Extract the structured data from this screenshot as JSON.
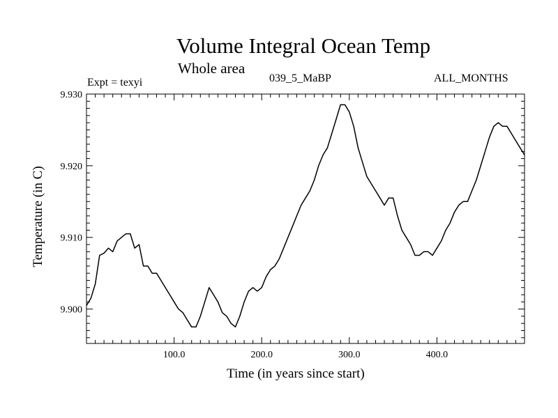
{
  "chart_data": {
    "type": "line",
    "title": "Volume Integral Ocean Temp",
    "subtitle": "Whole area",
    "annotations": {
      "expt": "Expt = texyi",
      "run": "039_5_MaBP",
      "months": "ALL_MONTHS"
    },
    "xlabel": "Time (in years since start)",
    "ylabel": "Temperature (in C)",
    "xlim": [
      0,
      500
    ],
    "ylim": [
      9.8952,
      9.93
    ],
    "xticks": [
      {
        "value": 100,
        "label": "100.0"
      },
      {
        "value": 200,
        "label": "200.0"
      },
      {
        "value": 300,
        "label": "300.0"
      },
      {
        "value": 400,
        "label": "400.0"
      }
    ],
    "yticks": [
      {
        "value": 9.9,
        "label": "9.900"
      },
      {
        "value": 9.91,
        "label": "9.910"
      },
      {
        "value": 9.92,
        "label": "9.920"
      },
      {
        "value": 9.93,
        "label": "9.930"
      }
    ],
    "grid": false,
    "line_color": "#000000",
    "series": [
      {
        "x": [
          0,
          5,
          10,
          15,
          20,
          25,
          30,
          35,
          40,
          45,
          50,
          55,
          60,
          65,
          70,
          75,
          80,
          85,
          90,
          95,
          100,
          105,
          110,
          115,
          120,
          125,
          130,
          135,
          140,
          145,
          150,
          155,
          160,
          165,
          170,
          175,
          180,
          185,
          190,
          195,
          200,
          205,
          210,
          215,
          220,
          225,
          230,
          235,
          240,
          245,
          250,
          255,
          260,
          265,
          270,
          275,
          280,
          285,
          290,
          295,
          300,
          305,
          310,
          315,
          320,
          325,
          330,
          335,
          340,
          345,
          350,
          355,
          360,
          365,
          370,
          375,
          380,
          385,
          390,
          395,
          400,
          405,
          410,
          415,
          420,
          425,
          430,
          435,
          440,
          445,
          450,
          455,
          460,
          465,
          470,
          475,
          480,
          485,
          490,
          495,
          500
        ],
        "y": [
          9.9005,
          9.9015,
          9.9035,
          9.9075,
          9.9078,
          9.9085,
          9.908,
          9.9095,
          9.91,
          9.9105,
          9.9105,
          9.9085,
          9.909,
          9.906,
          9.906,
          9.905,
          9.905,
          9.904,
          9.903,
          9.902,
          9.901,
          9.9,
          9.8995,
          9.8985,
          9.8975,
          9.8975,
          9.899,
          9.901,
          9.903,
          9.902,
          9.901,
          9.8995,
          9.899,
          9.898,
          9.8975,
          9.899,
          9.901,
          9.9025,
          9.903,
          9.9025,
          9.903,
          9.9045,
          9.9055,
          9.906,
          9.907,
          9.9085,
          9.91,
          9.9115,
          9.913,
          9.9145,
          9.9155,
          9.9165,
          9.918,
          9.92,
          9.9215,
          9.9225,
          9.9245,
          9.9265,
          9.9285,
          9.9285,
          9.9275,
          9.9255,
          9.9225,
          9.9205,
          9.9185,
          9.9175,
          9.9165,
          9.9155,
          9.9145,
          9.9155,
          9.9155,
          9.913,
          9.911,
          9.91,
          9.909,
          9.9075,
          9.9075,
          9.908,
          9.908,
          9.9075,
          9.9085,
          9.9095,
          9.911,
          9.912,
          9.9135,
          9.9145,
          9.915,
          9.915,
          9.9165,
          9.918,
          9.92,
          9.922,
          9.924,
          9.9255,
          9.926,
          9.9255,
          9.9255,
          9.9245,
          9.9235,
          9.9225,
          9.9215
        ]
      }
    ]
  }
}
